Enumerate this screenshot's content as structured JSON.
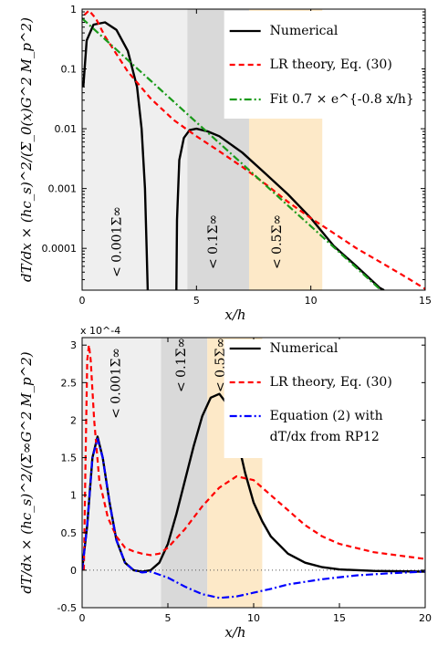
{
  "chart_data": [
    {
      "type": "line",
      "panel": "top",
      "yscale": "log",
      "xlim": [
        0,
        15
      ],
      "ylim": [
        2e-05,
        1
      ],
      "x_ticks": [
        "0",
        "5",
        "10",
        "15"
      ],
      "y_ticks": [
        "1",
        "0.1",
        "0.01",
        "0.001",
        "0.0001"
      ],
      "xlabel": "x/h",
      "ylabel": "dT/dx × (hc_s)^2/(Σ_0(x)G^2 M_p^2)",
      "bands": [
        {
          "x0": 0,
          "x1": 4.6,
          "color": "#efefef",
          "label": "< 0.001Σ∞"
        },
        {
          "x0": 4.6,
          "x1": 7.3,
          "color": "#d9d9d9",
          "label": "< 0.1Σ∞"
        },
        {
          "x0": 7.3,
          "x1": 10.5,
          "color": "#fde9c8",
          "label": "< 0.5Σ∞"
        }
      ],
      "legend": {
        "position": "top-right",
        "entries": [
          "Numerical",
          "LR theory, Eq. (30)",
          "Fit 0.7 × e^{-0.8 x/h}"
        ]
      },
      "series": [
        {
          "name": "Numerical",
          "color": "#000000",
          "dash": "solid",
          "segments": [
            [
              [
                0.05,
                0.05
              ],
              [
                0.2,
                0.3
              ],
              [
                0.5,
                0.55
              ],
              [
                1.0,
                0.6
              ],
              [
                1.5,
                0.45
              ],
              [
                2.0,
                0.2
              ],
              [
                2.4,
                0.05
              ],
              [
                2.6,
                0.01
              ],
              [
                2.75,
                0.001
              ],
              [
                2.82,
                0.0001
              ],
              [
                2.87,
                2e-05
              ]
            ],
            [
              [
                4.12,
                2e-05
              ],
              [
                4.15,
                0.0003
              ],
              [
                4.25,
                0.003
              ],
              [
                4.45,
                0.007
              ],
              [
                4.7,
                0.0095
              ],
              [
                5.0,
                0.01
              ],
              [
                5.5,
                0.009
              ],
              [
                6.0,
                0.0075
              ],
              [
                7.0,
                0.004
              ],
              [
                8.0,
                0.0018
              ],
              [
                9.0,
                0.0008
              ],
              [
                10.0,
                0.00032
              ],
              [
                11.0,
                0.00011
              ],
              [
                12.0,
                5e-05
              ],
              [
                13.0,
                2.2e-05
              ],
              [
                13.2,
                2e-05
              ]
            ]
          ]
        },
        {
          "name": "LR theory, Eq. (30)",
          "color": "#ff0000",
          "dash": "6,4",
          "segments": [
            [
              [
                0.1,
                0.8
              ],
              [
                0.3,
                0.95
              ],
              [
                0.6,
                0.7
              ],
              [
                1.0,
                0.35
              ],
              [
                2.0,
                0.09
              ],
              [
                3.0,
                0.032
              ],
              [
                4.0,
                0.014
              ],
              [
                5.0,
                0.0075
              ],
              [
                6.0,
                0.0042
              ],
              [
                7.0,
                0.0023
              ],
              [
                8.0,
                0.0012
              ],
              [
                9.0,
                0.0006
              ],
              [
                10.0,
                0.00032
              ],
              [
                11.0,
                0.00018
              ],
              [
                12.0,
                0.0001
              ],
              [
                13.0,
                6e-05
              ],
              [
                14.0,
                3.6e-05
              ],
              [
                15.0,
                2.1e-05
              ]
            ]
          ]
        },
        {
          "name": "Fit 0.7 × e^{-0.8 x/h}",
          "color": "#1a9a1a",
          "dash": "8,3,2,3",
          "segments": [
            [
              [
                0,
                0.7
              ],
              [
                1,
                0.314
              ],
              [
                2,
                0.141
              ],
              [
                3,
                0.0635
              ],
              [
                4,
                0.0285
              ],
              [
                5,
                0.0128
              ],
              [
                6,
                0.00576
              ],
              [
                7,
                0.00259
              ],
              [
                8,
                0.00116
              ],
              [
                9,
                0.00052
              ],
              [
                10,
                0.000235
              ],
              [
                11,
                0.000105
              ],
              [
                12,
                4.7e-05
              ],
              [
                13,
                2.1e-05
              ],
              [
                13.1,
                2e-05
              ]
            ]
          ]
        }
      ]
    },
    {
      "type": "line",
      "panel": "bottom",
      "yscale": "linear",
      "y_multiplier": "x 10^-4",
      "xlim": [
        0,
        20
      ],
      "ylim": [
        -0.5,
        3.1
      ],
      "x_ticks": [
        "0",
        "5",
        "10",
        "15",
        "20"
      ],
      "y_ticks": [
        "3",
        "2.5",
        "2",
        "1.5",
        "1",
        "0.5",
        "0",
        "-0.5"
      ],
      "xlabel": "x/h",
      "ylabel": "dT/dx × (hc_s)^2/(Σ∞G^2 M_p^2)",
      "bands": [
        {
          "x0": 0,
          "x1": 4.6,
          "color": "#efefef",
          "label": "< 0.001Σ∞"
        },
        {
          "x0": 4.6,
          "x1": 7.3,
          "color": "#d9d9d9",
          "label": "< 0.1Σ∞"
        },
        {
          "x0": 7.3,
          "x1": 10.5,
          "color": "#fde9c8",
          "label": "< 0.5Σ∞"
        }
      ],
      "legend": {
        "position": "top-right",
        "entries": [
          "Numerical",
          "LR theory, Eq. (30)",
          "Equation (2) with",
          "dT/dx from RP12"
        ]
      },
      "series": [
        {
          "name": "Numerical",
          "color": "#000000",
          "dash": "solid",
          "segments": [
            [
              [
                0,
                0
              ],
              [
                0.3,
                0.6
              ],
              [
                0.6,
                1.5
              ],
              [
                0.9,
                1.78
              ],
              [
                1.2,
                1.5
              ],
              [
                1.6,
                0.9
              ],
              [
                2.0,
                0.4
              ],
              [
                2.5,
                0.1
              ],
              [
                3.0,
                0.0
              ],
              [
                3.5,
                -0.02
              ],
              [
                4.0,
                0.0
              ],
              [
                4.5,
                0.1
              ],
              [
                5.0,
                0.35
              ],
              [
                5.5,
                0.75
              ],
              [
                6.0,
                1.2
              ],
              [
                6.5,
                1.65
              ],
              [
                7.0,
                2.05
              ],
              [
                7.5,
                2.3
              ],
              [
                8.0,
                2.35
              ],
              [
                8.5,
                2.2
              ],
              [
                9.0,
                1.8
              ],
              [
                9.5,
                1.3
              ],
              [
                10.0,
                0.9
              ],
              [
                10.5,
                0.65
              ],
              [
                11.0,
                0.45
              ],
              [
                12.0,
                0.22
              ],
              [
                13.0,
                0.1
              ],
              [
                14.0,
                0.04
              ],
              [
                15.0,
                0.01
              ],
              [
                17.0,
                -0.01
              ],
              [
                20.0,
                -0.02
              ]
            ]
          ]
        },
        {
          "name": "LR theory, Eq. (30)",
          "color": "#ff0000",
          "dash": "6,4",
          "segments": [
            [
              [
                0.1,
                0
              ],
              [
                0.2,
                1.5
              ],
              [
                0.3,
                2.8
              ],
              [
                0.4,
                3.0
              ],
              [
                0.5,
                2.8
              ],
              [
                0.7,
                2.0
              ],
              [
                1.0,
                1.2
              ],
              [
                1.5,
                0.7
              ],
              [
                2.0,
                0.45
              ],
              [
                2.5,
                0.3
              ],
              [
                3.0,
                0.25
              ],
              [
                3.5,
                0.22
              ],
              [
                4.0,
                0.2
              ],
              [
                4.5,
                0.22
              ],
              [
                5.0,
                0.3
              ],
              [
                6.0,
                0.55
              ],
              [
                7.0,
                0.85
              ],
              [
                8.0,
                1.1
              ],
              [
                9.0,
                1.25
              ],
              [
                10.0,
                1.2
              ],
              [
                11.0,
                1.0
              ],
              [
                12.0,
                0.8
              ],
              [
                13.0,
                0.6
              ],
              [
                14.0,
                0.45
              ],
              [
                15.0,
                0.35
              ],
              [
                17.0,
                0.24
              ],
              [
                20.0,
                0.15
              ]
            ]
          ]
        },
        {
          "name": "Equation (2) with",
          "color": "#0000ff",
          "dash": "8,3,2,3",
          "segments": [
            [
              [
                0,
                0
              ],
              [
                0.3,
                0.6
              ],
              [
                0.6,
                1.5
              ],
              [
                0.9,
                1.75
              ],
              [
                1.2,
                1.5
              ],
              [
                1.6,
                0.9
              ],
              [
                2.0,
                0.4
              ],
              [
                2.5,
                0.1
              ],
              [
                3.0,
                0.0
              ],
              [
                3.5,
                -0.03
              ],
              [
                4.0,
                -0.02
              ],
              [
                5.0,
                -0.1
              ],
              [
                6.0,
                -0.22
              ],
              [
                7.0,
                -0.32
              ],
              [
                8.0,
                -0.37
              ],
              [
                9.0,
                -0.35
              ],
              [
                10.0,
                -0.3
              ],
              [
                11.0,
                -0.25
              ],
              [
                12.0,
                -0.19
              ],
              [
                14.0,
                -0.12
              ],
              [
                16.0,
                -0.07
              ],
              [
                18.0,
                -0.04
              ],
              [
                20.0,
                -0.02
              ]
            ]
          ]
        }
      ]
    }
  ]
}
